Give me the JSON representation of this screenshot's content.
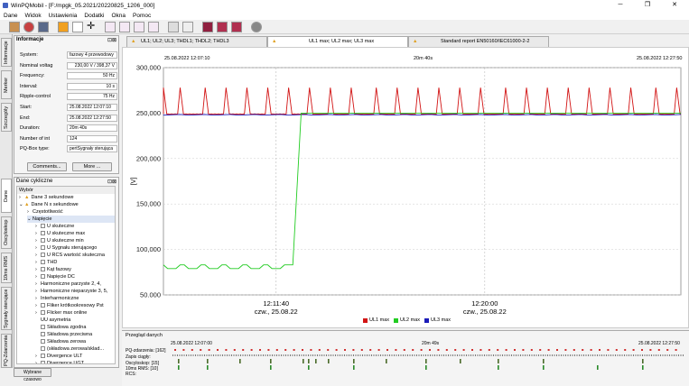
{
  "app": {
    "title": "WinPQMobil - [F:/mpgk_05.2021/20220825_1206_000]",
    "minimize": "─",
    "maximize": "❐",
    "close": "✕"
  },
  "menu": [
    "Dane",
    "Widok",
    "Ustawienia",
    "Dodatki",
    "Okna",
    "Pomoc"
  ],
  "side_tabs": [
    "Informacje",
    "Merker",
    "Szczególy",
    "Dane cykliczne",
    "Oscyloskop",
    "10ms RMS",
    "Sygnały sterujące",
    "PQ-Zdarzenia"
  ],
  "info": {
    "title": "Informacje",
    "fields": [
      {
        "label": "System:",
        "value": "fazowy 4 przewodowy"
      },
      {
        "label": "Nominal voltag",
        "value": "230,00 V / 398,37 V"
      },
      {
        "label": "Frequency:",
        "value": "50 Hz"
      },
      {
        "label": "Interval:",
        "value": "10 s"
      },
      {
        "label": "Ripple-control",
        "value": "75 Hz"
      },
      {
        "label": "Start:",
        "value": "25.08.2022 12:07:10"
      },
      {
        "label": "End:",
        "value": "25.08.2022 12:27:50"
      },
      {
        "label": "Duration:",
        "value": "20m 40s"
      },
      {
        "label": "Number of int",
        "value": "124"
      },
      {
        "label": "PQ-Box type:",
        "value": "pertSygnały sterująca"
      }
    ],
    "buttons": [
      "Comments...",
      "More ..."
    ]
  },
  "cyclic": {
    "title": "Dane cykliczne",
    "header": "Wybór",
    "items": [
      {
        "t": "Dane 3 sekundowe",
        "lvl": 0,
        "exp": "›",
        "ic": "warn"
      },
      {
        "t": "Dane N x sekundowe",
        "lvl": 0,
        "exp": "⌄",
        "ic": "warn"
      },
      {
        "t": "Częstotliwość",
        "lvl": 1,
        "exp": "›",
        "ic": ""
      },
      {
        "t": "Napięcie",
        "lvl": 1,
        "exp": "⌄",
        "ic": "",
        "sel": true
      },
      {
        "t": "U skuteczne",
        "lvl": 2,
        "exp": "›",
        "ic": "cb"
      },
      {
        "t": "U skuteczne max",
        "lvl": 2,
        "exp": "›",
        "ic": "cb"
      },
      {
        "t": "U skuteczne min",
        "lvl": 2,
        "exp": "›",
        "ic": "cb"
      },
      {
        "t": "U Sygnału sterującego",
        "lvl": 2,
        "exp": "›",
        "ic": "cb"
      },
      {
        "t": "U RCS wartość skuteczna",
        "lvl": 2,
        "exp": "›",
        "ic": "cb"
      },
      {
        "t": "THD",
        "lvl": 2,
        "exp": "›",
        "ic": "cb"
      },
      {
        "t": "Kąt fazowy",
        "lvl": 2,
        "exp": "›",
        "ic": "cb"
      },
      {
        "t": "Napięcie DC",
        "lvl": 2,
        "exp": "›",
        "ic": "cb"
      },
      {
        "t": "Harmoniczne parzyste 2, 4,",
        "lvl": 2,
        "exp": "›",
        "ic": ""
      },
      {
        "t": "Harmoniczne nieparzyste 3, 5,",
        "lvl": 2,
        "exp": "›",
        "ic": ""
      },
      {
        "t": "Interharmoniczne",
        "lvl": 2,
        "exp": "›",
        "ic": ""
      },
      {
        "t": "Fliker krótkookresowy Pst",
        "lvl": 2,
        "exp": "›",
        "ic": "cb"
      },
      {
        "t": "Flicker max online",
        "lvl": 2,
        "exp": "›",
        "ic": "cb"
      },
      {
        "t": "UU asymetria",
        "lvl": 2,
        "exp": "",
        "ic": ""
      },
      {
        "t": "Składowa zgodna",
        "lvl": 2,
        "exp": "",
        "ic": "cb"
      },
      {
        "t": "Składowa przeciwna",
        "lvl": 2,
        "exp": "",
        "ic": "cb"
      },
      {
        "t": "Składowa zerowa",
        "lvl": 2,
        "exp": "",
        "ic": "cb"
      },
      {
        "t": "(składowa zerowa/sklad...",
        "lvl": 2,
        "exp": "",
        "ic": "cb"
      },
      {
        "t": "Divergence ULT",
        "lvl": 2,
        "exp": "›",
        "ic": "cb"
      },
      {
        "t": "Divergence UGT",
        "lvl": 2,
        "exp": "›",
        "ic": "cb"
      }
    ]
  },
  "bottom_button": "Wybrane czasowo",
  "tabs": [
    {
      "label": "UL1; UL2; UL3; THDL1; THDL2; THDL3",
      "active": false
    },
    {
      "label": "UL1 max; UL2 max; UL3 max",
      "active": true
    },
    {
      "label": "Standard report EN50160/IEC61000-2-2",
      "active": false
    }
  ],
  "chart_header": {
    "start": "25.08.2022 12:07:10",
    "duration": "20m 40s",
    "end": "25.08.2022 12:27:50"
  },
  "chart_data": {
    "type": "line",
    "ylabel": "[V]",
    "ylim": [
      50000,
      300000
    ],
    "yticks": [
      "50.000",
      "100,000",
      "150,000",
      "200,000",
      "250,000",
      "300,000"
    ],
    "xticks": [
      {
        "time": "12:11:40",
        "date": "czw., 25.08.22"
      },
      {
        "time": "12:20:00",
        "date": "czw., 25.08.22"
      }
    ],
    "x_start": "12:07:10",
    "x_end": "12:27:50",
    "series": [
      {
        "name": "UL1 max",
        "color": "#d21414",
        "base": 249000,
        "spike": 278000
      },
      {
        "name": "UL2 max",
        "color": "#22cc22",
        "low": 79000,
        "high": 83000,
        "rise_from": "12:12:20",
        "rise_to": "12:12:40",
        "after": 250000
      },
      {
        "name": "UL3 max",
        "color": "#1b1bb8",
        "base": 247500
      }
    ],
    "spike_times": [
      "12:07:10",
      "12:07:50",
      "12:08:50",
      "12:09:40",
      "12:10:30",
      "12:11:20",
      "12:12:10",
      "12:13:00",
      "12:13:50",
      "12:14:40",
      "12:15:40",
      "12:16:30",
      "12:17:20",
      "12:18:10",
      "12:19:00",
      "12:19:50",
      "12:20:50",
      "12:21:40",
      "12:22:30",
      "12:23:20",
      "12:24:10",
      "12:25:00",
      "12:25:50",
      "12:26:50",
      "12:27:40"
    ]
  },
  "overview": {
    "title": "Przegląd danych",
    "start": "25.08.2022 12:07:00",
    "duration": "20m 49s",
    "end": "25.08.2022 12:27:50",
    "rows": [
      {
        "label": "PQ-zdarzenia: [162]"
      },
      {
        "label": "Zapis ciągły:"
      },
      {
        "label": "Oscyloskop: [15]"
      },
      {
        "label": "10ms RMS: [10]"
      },
      {
        "label": "RCS:"
      }
    ]
  }
}
